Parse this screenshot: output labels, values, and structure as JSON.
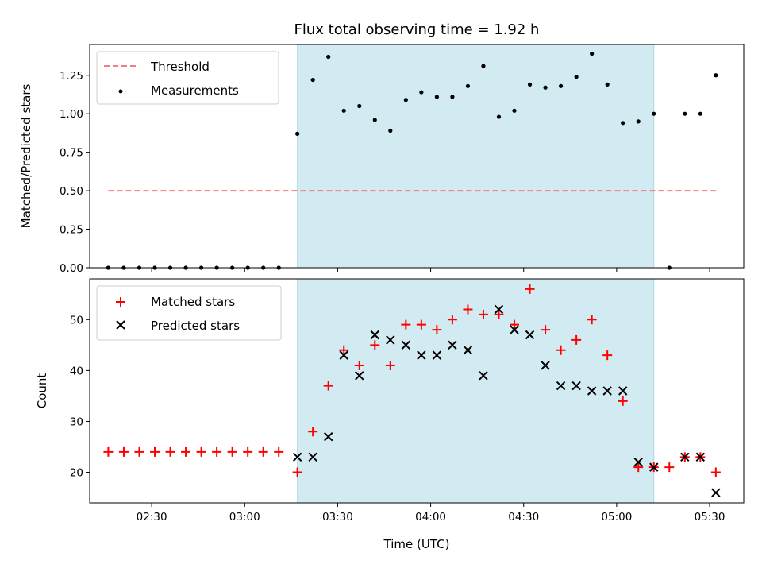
{
  "chart_data": [
    {
      "type": "scatter",
      "title": "Flux total observing time = 1.92 h",
      "ylabel": "Matched/Predicted stars",
      "xlim": [
        "02:10",
        "05:41"
      ],
      "ylim": [
        0,
        1.45
      ],
      "yticks": [
        "0.00",
        "0.25",
        "0.50",
        "0.75",
        "1.00",
        "1.25"
      ],
      "shaded_region": {
        "x_start": "03:17",
        "x_end": "05:12",
        "color": "#add8e6"
      },
      "legend_position": "top-left",
      "series": [
        {
          "name": "Threshold",
          "style": "dashed-line",
          "color": "#f08080",
          "points": [
            [
              "02:16",
              0.5
            ],
            [
              "05:32",
              0.5
            ]
          ]
        },
        {
          "name": "Measurements",
          "style": "dot",
          "color": "#000000",
          "points": [
            [
              "02:16",
              0.0
            ],
            [
              "02:21",
              0.0
            ],
            [
              "02:26",
              0.0
            ],
            [
              "02:31",
              0.0
            ],
            [
              "02:36",
              0.0
            ],
            [
              "02:41",
              0.0
            ],
            [
              "02:46",
              0.0
            ],
            [
              "02:51",
              0.0
            ],
            [
              "02:56",
              0.0
            ],
            [
              "03:01",
              0.0
            ],
            [
              "03:06",
              0.0
            ],
            [
              "03:11",
              0.0
            ],
            [
              "03:17",
              0.87
            ],
            [
              "03:22",
              1.22
            ],
            [
              "03:27",
              1.37
            ],
            [
              "03:32",
              1.02
            ],
            [
              "03:37",
              1.05
            ],
            [
              "03:42",
              0.96
            ],
            [
              "03:47",
              0.89
            ],
            [
              "03:52",
              1.09
            ],
            [
              "03:57",
              1.14
            ],
            [
              "04:02",
              1.11
            ],
            [
              "04:07",
              1.11
            ],
            [
              "04:12",
              1.18
            ],
            [
              "04:17",
              1.31
            ],
            [
              "04:22",
              0.98
            ],
            [
              "04:27",
              1.02
            ],
            [
              "04:32",
              1.19
            ],
            [
              "04:37",
              1.17
            ],
            [
              "04:42",
              1.18
            ],
            [
              "04:47",
              1.24
            ],
            [
              "04:52",
              1.39
            ],
            [
              "04:57",
              1.19
            ],
            [
              "05:02",
              0.94
            ],
            [
              "05:07",
              0.95
            ],
            [
              "05:12",
              1.0
            ],
            [
              "05:17",
              0.0
            ],
            [
              "05:22",
              1.0
            ],
            [
              "05:27",
              1.0
            ],
            [
              "05:32",
              1.25
            ]
          ]
        }
      ]
    },
    {
      "type": "scatter",
      "xlabel": "Time (UTC)",
      "ylabel": "Count",
      "xlim": [
        "02:10",
        "05:41"
      ],
      "ylim": [
        14,
        58
      ],
      "xticks": [
        "02:30",
        "03:00",
        "03:30",
        "04:00",
        "04:30",
        "05:00",
        "05:30"
      ],
      "yticks": [
        "20",
        "30",
        "40",
        "50"
      ],
      "shaded_region": {
        "x_start": "03:17",
        "x_end": "05:12",
        "color": "#add8e6"
      },
      "legend_position": "top-left",
      "series": [
        {
          "name": "Matched stars",
          "style": "plus",
          "color": "#ff0000",
          "points": [
            [
              "02:16",
              24
            ],
            [
              "02:21",
              24
            ],
            [
              "02:26",
              24
            ],
            [
              "02:31",
              24
            ],
            [
              "02:36",
              24
            ],
            [
              "02:41",
              24
            ],
            [
              "02:46",
              24
            ],
            [
              "02:51",
              24
            ],
            [
              "02:56",
              24
            ],
            [
              "03:01",
              24
            ],
            [
              "03:06",
              24
            ],
            [
              "03:11",
              24
            ],
            [
              "03:17",
              20
            ],
            [
              "03:22",
              28
            ],
            [
              "03:27",
              37
            ],
            [
              "03:32",
              44
            ],
            [
              "03:37",
              41
            ],
            [
              "03:42",
              45
            ],
            [
              "03:47",
              41
            ],
            [
              "03:52",
              49
            ],
            [
              "03:57",
              49
            ],
            [
              "04:02",
              48
            ],
            [
              "04:07",
              50
            ],
            [
              "04:12",
              52
            ],
            [
              "04:17",
              51
            ],
            [
              "04:22",
              51
            ],
            [
              "04:27",
              49
            ],
            [
              "04:32",
              56
            ],
            [
              "04:37",
              48
            ],
            [
              "04:42",
              44
            ],
            [
              "04:47",
              46
            ],
            [
              "04:52",
              50
            ],
            [
              "04:57",
              43
            ],
            [
              "05:02",
              34
            ],
            [
              "05:07",
              21
            ],
            [
              "05:12",
              21
            ],
            [
              "05:17",
              21
            ],
            [
              "05:22",
              23
            ],
            [
              "05:27",
              23
            ],
            [
              "05:32",
              20
            ]
          ]
        },
        {
          "name": "Predicted stars",
          "style": "x",
          "color": "#000000",
          "points": [
            [
              "03:17",
              23
            ],
            [
              "03:22",
              23
            ],
            [
              "03:27",
              27
            ],
            [
              "03:32",
              43
            ],
            [
              "03:37",
              39
            ],
            [
              "03:42",
              47
            ],
            [
              "03:47",
              46
            ],
            [
              "03:52",
              45
            ],
            [
              "03:57",
              43
            ],
            [
              "04:02",
              43
            ],
            [
              "04:07",
              45
            ],
            [
              "04:12",
              44
            ],
            [
              "04:17",
              39
            ],
            [
              "04:22",
              52
            ],
            [
              "04:27",
              48
            ],
            [
              "04:32",
              47
            ],
            [
              "04:37",
              41
            ],
            [
              "04:42",
              37
            ],
            [
              "04:47",
              37
            ],
            [
              "04:52",
              36
            ],
            [
              "04:57",
              36
            ],
            [
              "05:02",
              36
            ],
            [
              "05:07",
              22
            ],
            [
              "05:12",
              21
            ],
            [
              "05:22",
              23
            ],
            [
              "05:27",
              23
            ],
            [
              "05:32",
              16
            ]
          ]
        }
      ]
    }
  ]
}
